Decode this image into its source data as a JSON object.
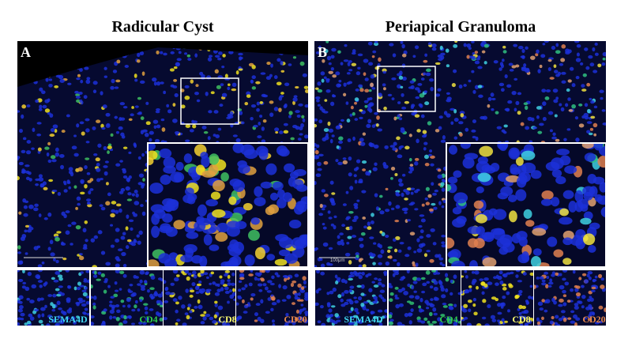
{
  "panels": [
    {
      "letter": "A",
      "title": "Radicular Cyst",
      "channels": [
        "SEMA4D",
        "CD4",
        "CD8",
        "CD20"
      ]
    },
    {
      "letter": "B",
      "title": "Periapical Granuloma",
      "channels": [
        "SEMA4D",
        "CD4",
        "CD8",
        "CD20"
      ],
      "scale_bar": "100μm"
    }
  ]
}
